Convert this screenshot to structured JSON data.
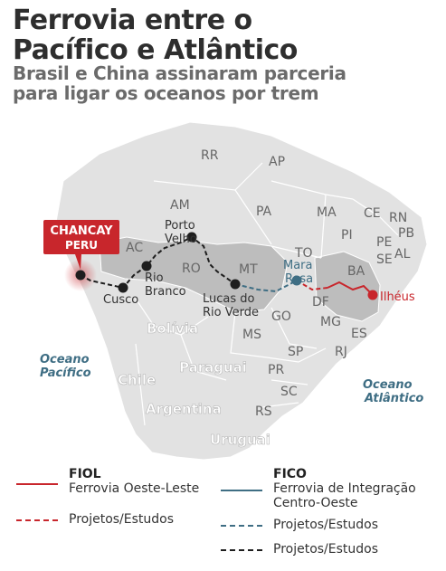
{
  "header": {
    "title_line1": "Ferrovia entre o",
    "title_line2": "Pacífico e Atlântico",
    "subtitle_line1": "Brasil e China assinaram parceria",
    "subtitle_line2": "para ligar os oceanos por trem"
  },
  "map": {
    "callout": {
      "line1": "CHANCAY",
      "line2": "PERU",
      "color": "#c8262c"
    },
    "states": [
      "RR",
      "AP",
      "AM",
      "PA",
      "MA",
      "CE",
      "RN",
      "PB",
      "PE",
      "AL",
      "SE",
      "PI",
      "TO",
      "BA",
      "AC",
      "RO",
      "MT",
      "DF",
      "GO",
      "MG",
      "ES",
      "MS",
      "SP",
      "RJ",
      "PR",
      "SC",
      "RS"
    ],
    "countries": [
      "Bolívia",
      "Chile",
      "Paraguai",
      "Argentina",
      "Uruguai"
    ],
    "cities": {
      "cusco": "Cusco",
      "rio_branco_1": "Rio",
      "rio_branco_2": "Branco",
      "porto_velho_1": "Porto",
      "porto_velho_2": "Velho",
      "lucas_1": "Lucas do",
      "lucas_2": "Rio Verde",
      "mara_rosa_1": "Mara",
      "mara_rosa_2": "Rosa",
      "ilheus": "Ilhéus"
    },
    "oceans": {
      "pacific_1": "Oceano",
      "pacific_2": "Pacífico",
      "atlantic_1": "Oceano",
      "atlantic_2": "Atlântico"
    },
    "colors": {
      "fiol": "#c8262c",
      "fico": "#3f6e84",
      "projects": "#1e1e1e",
      "highlight_state": "#bdbdbd",
      "land": "#e2e2e2",
      "water": "#ffffff",
      "ocean_label": "#3f6e84"
    }
  },
  "legend": {
    "fiol_title": "FIOL",
    "fiol_desc": "Ferrovia Oeste-Leste",
    "fiol_projects": "Projetos/Estudos",
    "fico_title": "FICO",
    "fico_desc_1": "Ferrovia de Integração",
    "fico_desc_2": "Centro-Oeste",
    "fico_projects": "Projetos/Estudos",
    "black_projects": "Projetos/Estudos"
  }
}
